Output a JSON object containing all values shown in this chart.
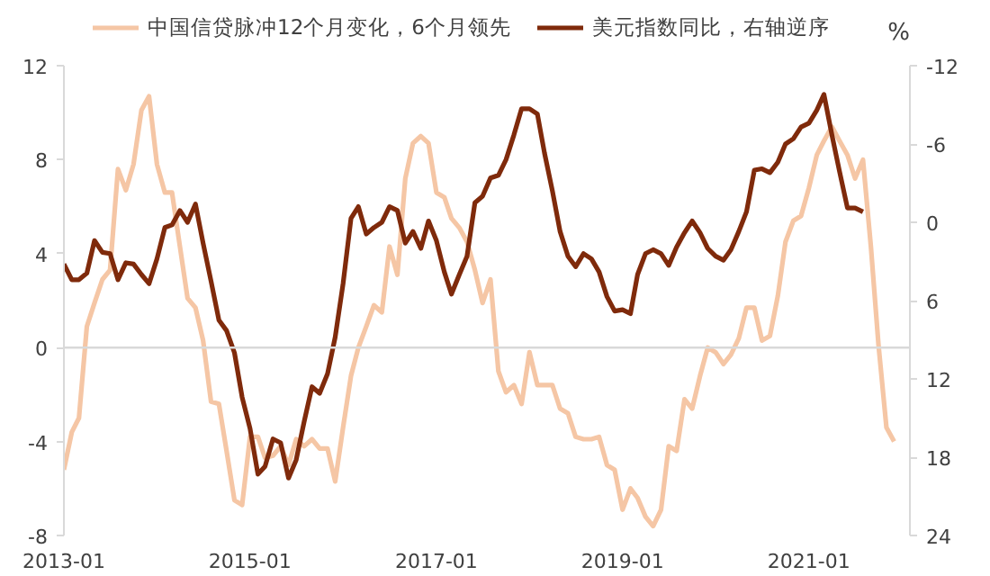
{
  "chart_data": {
    "type": "line",
    "x": [
      "2013-01",
      "2013-02",
      "2013-03",
      "2013-04",
      "2013-05",
      "2013-06",
      "2013-07",
      "2013-08",
      "2013-09",
      "2013-10",
      "2013-11",
      "2013-12",
      "2014-01",
      "2014-02",
      "2014-03",
      "2014-04",
      "2014-05",
      "2014-06",
      "2014-07",
      "2014-08",
      "2014-09",
      "2014-10",
      "2014-11",
      "2014-12",
      "2015-01",
      "2015-02",
      "2015-03",
      "2015-04",
      "2015-05",
      "2015-06",
      "2015-07",
      "2015-08",
      "2015-09",
      "2015-10",
      "2015-11",
      "2015-12",
      "2016-01",
      "2016-02",
      "2016-03",
      "2016-04",
      "2016-05",
      "2016-06",
      "2016-07",
      "2016-08",
      "2016-09",
      "2016-10",
      "2016-11",
      "2016-12",
      "2017-01",
      "2017-02",
      "2017-03",
      "2017-04",
      "2017-05",
      "2017-06",
      "2017-07",
      "2017-08",
      "2017-09",
      "2017-10",
      "2017-11",
      "2017-12",
      "2018-01",
      "2018-02",
      "2018-03",
      "2018-04",
      "2018-05",
      "2018-06",
      "2018-07",
      "2018-08",
      "2018-09",
      "2018-10",
      "2018-11",
      "2018-12",
      "2019-01",
      "2019-02",
      "2019-03",
      "2019-04",
      "2019-05",
      "2019-06",
      "2019-07",
      "2019-08",
      "2019-09",
      "2019-10",
      "2019-11",
      "2019-12",
      "2020-01",
      "2020-02",
      "2020-03",
      "2020-04",
      "2020-05",
      "2020-06",
      "2020-07",
      "2020-08",
      "2020-09",
      "2020-10",
      "2020-11",
      "2020-12",
      "2021-01",
      "2021-02",
      "2021-03",
      "2021-04",
      "2021-05",
      "2021-06",
      "2021-07",
      "2021-08",
      "2021-09",
      "2021-10",
      "2021-11",
      "2021-12"
    ],
    "series": [
      {
        "name": "中国信贷脉冲12个月变化，6个月领先",
        "color": "#f5c6a5",
        "values": [
          -5.2,
          -3.6,
          -3.0,
          0.9,
          1.9,
          2.9,
          3.3,
          7.6,
          6.7,
          7.8,
          10.1,
          10.7,
          7.8,
          6.6,
          6.6,
          4.3,
          2.1,
          1.7,
          0.3,
          -2.3,
          -2.4,
          -4.4,
          -6.5,
          -6.7,
          -3.8,
          -3.8,
          -4.7,
          -4.6,
          -4.2,
          -5.0,
          -3.9,
          -4.2,
          -3.9,
          -4.3,
          -4.3,
          -5.7,
          -3.4,
          -1.2,
          0,
          0.9,
          1.8,
          1.5,
          4.3,
          3.1,
          7.2,
          8.7,
          9.0,
          8.7,
          6.6,
          6.4,
          5.5,
          5.1,
          4.5,
          3.3,
          1.9,
          2.9,
          -1.0,
          -1.9,
          -1.6,
          -2.4,
          -0.2,
          -1.6,
          -1.6,
          -1.6,
          -2.6,
          -2.8,
          -3.8,
          -3.9,
          -3.9,
          -3.8,
          -5.0,
          -5.2,
          -6.9,
          -6.0,
          -6.4,
          -7.2,
          -7.6,
          -6.9,
          -4.2,
          -4.4,
          -2.2,
          -2.6,
          -1.2,
          0,
          -0.2,
          -0.7,
          -0.3,
          0.4,
          1.7,
          1.7,
          0.3,
          0.5,
          2.2,
          4.5,
          5.4,
          5.6,
          6.8,
          8.2,
          8.8,
          9.4,
          8.8,
          8.2,
          7.2,
          8.0,
          4.3,
          0.1,
          -3.4,
          -4.0
        ]
      },
      {
        "name": "美元指数同比，右轴逆序",
        "color": "#7f2a0b",
        "axis": "y2",
        "values": [
          3.2,
          4.4,
          4.4,
          3.9,
          1.4,
          2.3,
          2.4,
          4.4,
          3.1,
          3.2,
          4.0,
          4.7,
          2.8,
          0.4,
          0.2,
          -0.9,
          0,
          -1.4,
          1.6,
          4.5,
          7.5,
          8.3,
          10.0,
          13.4,
          15.8,
          19.3,
          18.7,
          16.6,
          16.9,
          19.6,
          18.2,
          15.3,
          12.6,
          13.1,
          11.6,
          8.8,
          4.7,
          -0.3,
          -1.2,
          0.9,
          0.4,
          0,
          -1.2,
          -0.9,
          1.6,
          0.7,
          2.0,
          -0.1,
          1.4,
          3.8,
          5.5,
          4.0,
          2.6,
          -1.5,
          -2.0,
          -3.4,
          -3.6,
          -4.8,
          -6.7,
          -8.7,
          -8.7,
          -8.3,
          -5.3,
          -2.4,
          0.7,
          2.6,
          3.4,
          2.4,
          2.8,
          3.8,
          5.7,
          6.8,
          6.7,
          7.0,
          4.0,
          2.4,
          2.1,
          2.4,
          3.3,
          1.9,
          0.8,
          -0.1,
          0.8,
          2.0,
          2.6,
          2.9,
          2.1,
          0.7,
          -0.8,
          -4.0,
          -4.1,
          -3.8,
          -4.6,
          -6.0,
          -6.4,
          -7.3,
          -7.6,
          -8.6,
          -9.8,
          -6.7,
          -3.9,
          -1.1,
          -1.1,
          -0.8,
          null,
          null,
          null,
          null
        ]
      }
    ],
    "y2label": "%",
    "xlim": [
      "2013-01",
      "2022-02"
    ],
    "xticks": [
      "2013-01",
      "2015-01",
      "2017-01",
      "2019-01",
      "2021-01"
    ],
    "ylim": [
      -8,
      12
    ],
    "yticks": [
      -8,
      -4,
      0,
      4,
      8,
      12
    ],
    "y2lim": [
      24,
      -12
    ],
    "y2ticks": [
      -12,
      -6,
      0,
      6,
      12,
      18,
      24
    ],
    "ref_lines": [
      {
        "axis": "y",
        "value": 0,
        "color": "#d9d9d9"
      }
    ],
    "grid": false,
    "legend": "top",
    "marker": "none",
    "line_style": "solid"
  }
}
